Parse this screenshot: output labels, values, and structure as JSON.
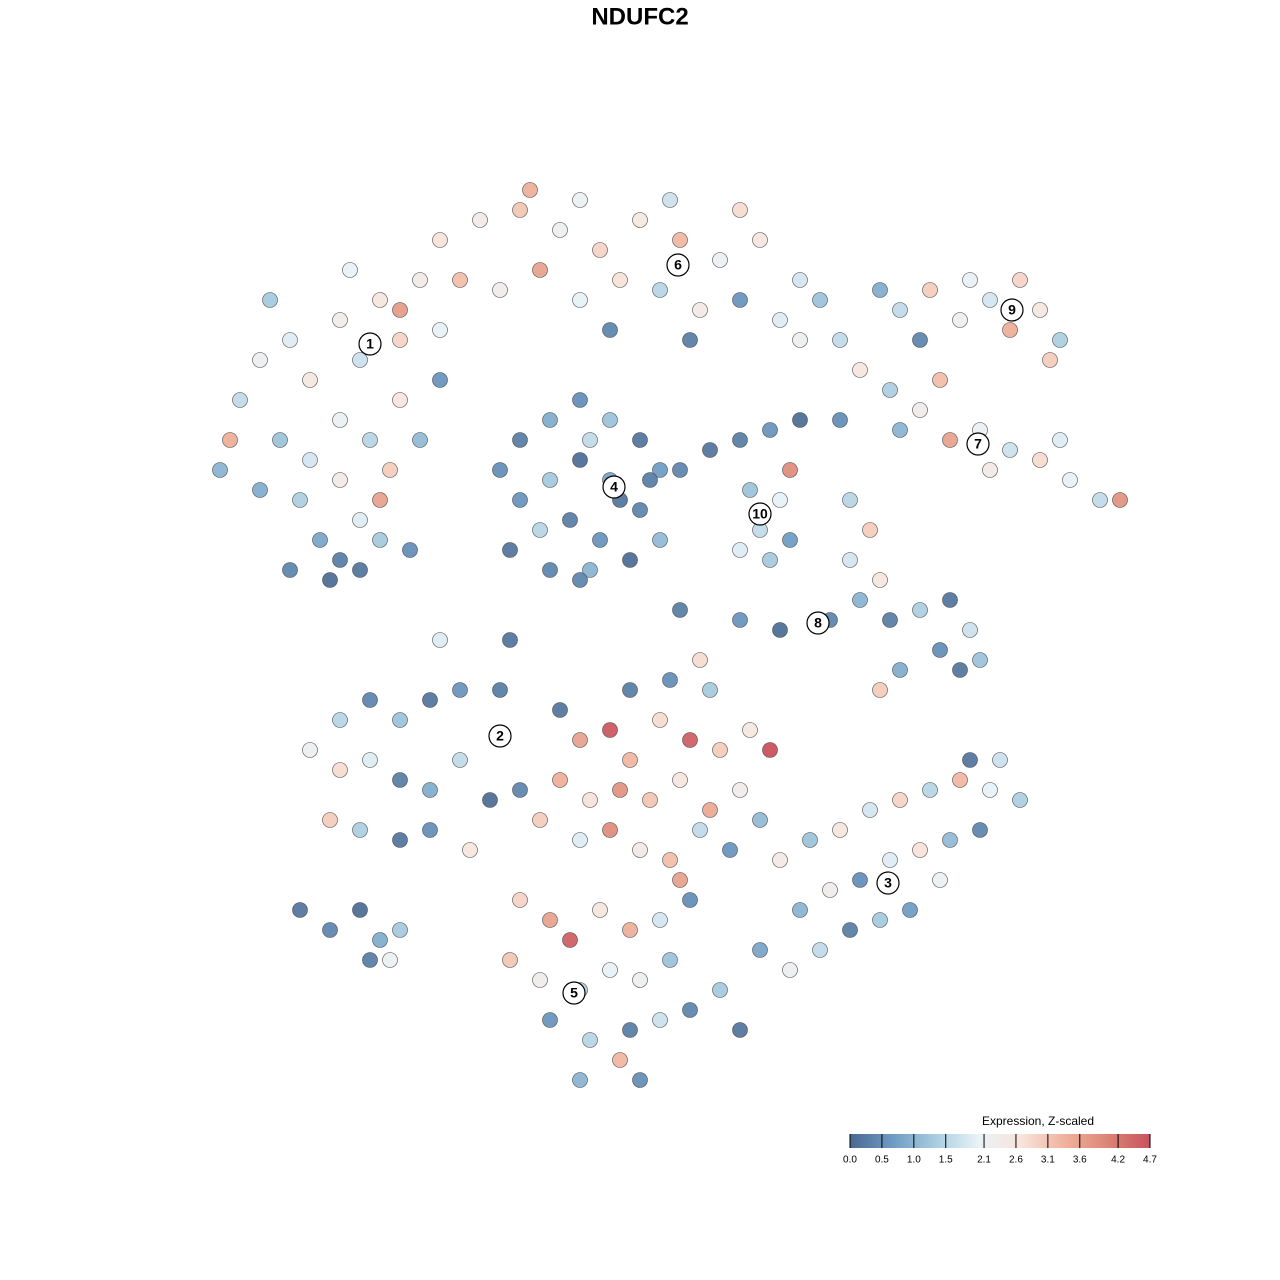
{
  "chart_data": {
    "type": "scatter",
    "title": "NDUFC2",
    "colorbar_title": "Expression, Z-scaled",
    "clim": [
      0,
      4.7
    ],
    "cticks": [
      {
        "value": 0,
        "label": "0.0"
      },
      0.5,
      {
        "value": 1,
        "label": "1.0"
      },
      1.5,
      2.1,
      2.6,
      3.1,
      3.6,
      4.2,
      4.7
    ],
    "colors": [
      "#4a6890",
      "#6f9cc4",
      "#a9cde0",
      "#e9f2f7",
      "#f8e4da",
      "#efb39d",
      "#dc8575",
      "#c9525f"
    ],
    "clusters": [
      {
        "label": "1",
        "x": -27,
        "y": 29.6
      },
      {
        "label": "2",
        "x": -14,
        "y": -9.6
      },
      {
        "label": "3",
        "x": 24.8,
        "y": -24.3
      },
      {
        "label": "4",
        "x": -2.6,
        "y": 15.3
      },
      {
        "label": "5",
        "x": -6.6,
        "y": -35.3
      },
      {
        "label": "6",
        "x": 3.8,
        "y": 37.5
      },
      {
        "label": "7",
        "x": 33.8,
        "y": 19.6
      },
      {
        "label": "8",
        "x": 17.8,
        "y": 1.7
      },
      {
        "label": "9",
        "x": 37.2,
        "y": 33
      },
      {
        "label": "10",
        "x": 12,
        "y": 12.6
      }
    ],
    "points": [
      [
        -40,
        24,
        1.6
      ],
      [
        -38,
        28,
        2.2
      ],
      [
        -35,
        30,
        1.9
      ],
      [
        -33,
        26,
        2.5
      ],
      [
        -30,
        32,
        2.3
      ],
      [
        -28,
        28,
        1.7
      ],
      [
        -26,
        34,
        2.6
      ],
      [
        -24,
        30,
        2.9
      ],
      [
        -22,
        36,
        2.4
      ],
      [
        -20,
        31,
        2.0
      ],
      [
        -36,
        20,
        1.2
      ],
      [
        -33,
        18,
        1.8
      ],
      [
        -30,
        22,
        2.1
      ],
      [
        -27,
        20,
        1.5
      ],
      [
        -24,
        24,
        2.6
      ],
      [
        -25,
        17,
        3.0
      ],
      [
        -30,
        16,
        2.4
      ],
      [
        -34,
        14,
        1.4
      ],
      [
        -28,
        12,
        1.9
      ],
      [
        -32,
        10,
        0.8
      ],
      [
        -26,
        10,
        1.3
      ],
      [
        -30,
        8,
        0.3
      ],
      [
        -28,
        7,
        0.2
      ],
      [
        -31,
        6,
        0.1
      ],
      [
        -35,
        7,
        0.4
      ],
      [
        -23,
        9,
        0.5
      ],
      [
        -42,
        17,
        1.0
      ],
      [
        -41,
        20,
        3.4
      ],
      [
        -37,
        34,
        1.3
      ],
      [
        -24,
        33,
        3.7
      ],
      [
        -29,
        37,
        2.0
      ],
      [
        -20,
        26,
        0.6
      ],
      [
        -22,
        20,
        1.1
      ],
      [
        -26,
        14,
        3.6
      ],
      [
        -38,
        15,
        0.9
      ],
      [
        -20,
        40,
        2.7
      ],
      [
        -16,
        42,
        2.4
      ],
      [
        -12,
        43,
        3.1
      ],
      [
        -8,
        41,
        2.2
      ],
      [
        -4,
        39,
        2.9
      ],
      [
        0,
        42,
        2.5
      ],
      [
        4,
        40,
        3.3
      ],
      [
        8,
        38,
        2.1
      ],
      [
        12,
        40,
        2.6
      ],
      [
        16,
        36,
        1.8
      ],
      [
        -18,
        36,
        3.2
      ],
      [
        -14,
        35,
        2.3
      ],
      [
        -10,
        37,
        3.6
      ],
      [
        -6,
        34,
        2.0
      ],
      [
        -2,
        36,
        2.7
      ],
      [
        2,
        35,
        1.5
      ],
      [
        6,
        33,
        2.4
      ],
      [
        10,
        34,
        0.6
      ],
      [
        14,
        32,
        1.9
      ],
      [
        18,
        34,
        1.2
      ],
      [
        -11,
        45,
        3.4
      ],
      [
        -6,
        44,
        2.1
      ],
      [
        3,
        44,
        1.7
      ],
      [
        10,
        43,
        2.8
      ],
      [
        -3,
        31,
        0.4
      ],
      [
        5,
        30,
        0.3
      ],
      [
        16,
        30,
        2.2
      ],
      [
        20,
        30,
        1.6
      ],
      [
        -12,
        20,
        0.3
      ],
      [
        -9,
        22,
        0.9
      ],
      [
        -6,
        24,
        0.5
      ],
      [
        -3,
        22,
        1.2
      ],
      [
        0,
        20,
        0.2
      ],
      [
        2,
        17,
        0.7
      ],
      [
        -12,
        14,
        0.6
      ],
      [
        -9,
        16,
        1.3
      ],
      [
        -6,
        18,
        0.1
      ],
      [
        -3,
        16,
        0.8
      ],
      [
        0,
        13,
        0.4
      ],
      [
        2,
        10,
        1.1
      ],
      [
        -13,
        9,
        0.2
      ],
      [
        -10,
        11,
        1.5
      ],
      [
        -7,
        12,
        0.3
      ],
      [
        -4,
        10,
        0.6
      ],
      [
        -1,
        8,
        0.1
      ],
      [
        -9,
        7,
        0.4
      ],
      [
        -5,
        7,
        1.0
      ],
      [
        -2,
        14,
        0.2
      ],
      [
        -14,
        17,
        0.5
      ],
      [
        -5,
        20,
        1.6
      ],
      [
        1,
        16,
        0.3
      ],
      [
        4,
        17,
        0.4
      ],
      [
        7,
        19,
        0.2
      ],
      [
        10,
        20,
        0.3
      ],
      [
        13,
        21,
        0.6
      ],
      [
        16,
        22,
        0.1
      ],
      [
        11,
        15,
        1.2
      ],
      [
        14,
        14,
        2.0
      ],
      [
        12,
        11,
        1.6
      ],
      [
        15,
        10,
        0.7
      ],
      [
        10,
        9,
        1.9
      ],
      [
        13,
        8,
        1.3
      ],
      [
        15,
        17,
        3.9
      ],
      [
        26,
        33,
        1.6
      ],
      [
        29,
        35,
        3.0
      ],
      [
        32,
        32,
        2.2
      ],
      [
        35,
        34,
        1.8
      ],
      [
        37,
        31,
        3.4
      ],
      [
        40,
        33,
        2.5
      ],
      [
        42,
        30,
        1.4
      ],
      [
        33,
        36,
        2.0
      ],
      [
        38,
        36,
        2.9
      ],
      [
        41,
        28,
        3.0
      ],
      [
        28,
        30,
        0.4
      ],
      [
        24,
        35,
        0.9
      ],
      [
        22,
        27,
        2.6
      ],
      [
        25,
        25,
        1.4
      ],
      [
        28,
        23,
        2.3
      ],
      [
        31,
        20,
        3.6
      ],
      [
        34,
        21,
        2.1
      ],
      [
        37,
        19,
        1.7
      ],
      [
        40,
        18,
        2.8
      ],
      [
        43,
        16,
        2.0
      ],
      [
        46,
        14,
        1.6
      ],
      [
        48,
        14,
        3.8
      ],
      [
        30,
        26,
        3.2
      ],
      [
        35,
        17,
        2.4
      ],
      [
        26,
        21,
        1.0
      ],
      [
        42,
        20,
        1.9
      ],
      [
        20,
        22,
        0.5
      ],
      [
        21,
        14,
        1.5
      ],
      [
        23,
        11,
        3.0
      ],
      [
        21,
        8,
        1.8
      ],
      [
        24,
        6,
        2.6
      ],
      [
        22,
        4,
        1.0
      ],
      [
        25,
        2,
        0.3
      ],
      [
        28,
        3,
        1.4
      ],
      [
        31,
        4,
        0.2
      ],
      [
        33,
        1,
        1.7
      ],
      [
        30,
        -1,
        0.5
      ],
      [
        26,
        -3,
        0.9
      ],
      [
        32,
        -3,
        0.2
      ],
      [
        34,
        -2,
        1.2
      ],
      [
        19,
        2,
        0.4
      ],
      [
        14,
        1,
        0.1
      ],
      [
        10,
        2,
        0.6
      ],
      [
        24,
        -5,
        3.0
      ],
      [
        -30,
        -8,
        1.5
      ],
      [
        -27,
        -6,
        0.4
      ],
      [
        -24,
        -8,
        1.2
      ],
      [
        -21,
        -6,
        0.2
      ],
      [
        -18,
        -5,
        0.6
      ],
      [
        -14,
        -5,
        0.3
      ],
      [
        -30,
        -13,
        2.8
      ],
      [
        -27,
        -12,
        1.9
      ],
      [
        -24,
        -14,
        0.3
      ],
      [
        -21,
        -15,
        0.9
      ],
      [
        -18,
        -12,
        1.6
      ],
      [
        -31,
        -18,
        3.0
      ],
      [
        -28,
        -19,
        1.4
      ],
      [
        -24,
        -20,
        0.2
      ],
      [
        -21,
        -19,
        0.5
      ],
      [
        -17,
        -21,
        2.6
      ],
      [
        -15,
        -16,
        0.1
      ],
      [
        -12,
        -15,
        0.4
      ],
      [
        -33,
        -11,
        2.2
      ],
      [
        -6,
        -10,
        3.6
      ],
      [
        -3,
        -9,
        4.6
      ],
      [
        -1,
        -12,
        3.3
      ],
      [
        2,
        -8,
        2.8
      ],
      [
        5,
        -10,
        4.5
      ],
      [
        8,
        -11,
        3.0
      ],
      [
        11,
        -9,
        2.5
      ],
      [
        13,
        -11,
        4.7
      ],
      [
        -8,
        -14,
        3.4
      ],
      [
        -5,
        -16,
        2.7
      ],
      [
        -2,
        -15,
        3.8
      ],
      [
        1,
        -16,
        3.1
      ],
      [
        4,
        -14,
        2.6
      ],
      [
        7,
        -17,
        3.5
      ],
      [
        10,
        -15,
        2.3
      ],
      [
        -6,
        -20,
        1.9
      ],
      [
        -3,
        -19,
        3.9
      ],
      [
        0,
        -21,
        2.4
      ],
      [
        3,
        -22,
        3.2
      ],
      [
        6,
        -19,
        1.6
      ],
      [
        9,
        -21,
        0.6
      ],
      [
        -1,
        -5,
        0.3
      ],
      [
        3,
        -4,
        0.5
      ],
      [
        7,
        -5,
        1.3
      ],
      [
        -8,
        -7,
        0.2
      ],
      [
        4,
        -24,
        3.6
      ],
      [
        -10,
        -18,
        3.0
      ],
      [
        12,
        -18,
        1.1
      ],
      [
        14,
        -22,
        2.4
      ],
      [
        17,
        -20,
        1.2
      ],
      [
        20,
        -19,
        2.6
      ],
      [
        23,
        -17,
        1.8
      ],
      [
        26,
        -16,
        2.9
      ],
      [
        29,
        -15,
        1.5
      ],
      [
        32,
        -14,
        3.3
      ],
      [
        35,
        -15,
        2.0
      ],
      [
        38,
        -16,
        1.4
      ],
      [
        16,
        -27,
        1.0
      ],
      [
        19,
        -25,
        2.3
      ],
      [
        22,
        -24,
        0.5
      ],
      [
        25,
        -22,
        1.9
      ],
      [
        28,
        -21,
        2.7
      ],
      [
        31,
        -20,
        1.1
      ],
      [
        34,
        -19,
        0.4
      ],
      [
        18,
        -31,
        1.6
      ],
      [
        21,
        -29,
        0.3
      ],
      [
        24,
        -28,
        1.3
      ],
      [
        27,
        -27,
        0.7
      ],
      [
        15,
        -33,
        2.2
      ],
      [
        30,
        -24,
        2.1
      ],
      [
        36,
        -12,
        1.7
      ],
      [
        33,
        -12,
        0.2
      ],
      [
        -12,
        -26,
        2.9
      ],
      [
        -9,
        -28,
        3.6
      ],
      [
        -7,
        -30,
        4.5
      ],
      [
        -4,
        -27,
        2.6
      ],
      [
        -1,
        -29,
        3.4
      ],
      [
        2,
        -28,
        1.8
      ],
      [
        5,
        -26,
        0.5
      ],
      [
        -13,
        -32,
        3.1
      ],
      [
        -10,
        -34,
        2.3
      ],
      [
        -6,
        -35,
        1.4
      ],
      [
        -3,
        -33,
        2.0
      ],
      [
        0,
        -34,
        2.2
      ],
      [
        3,
        -32,
        1.2
      ],
      [
        -9,
        -38,
        0.6
      ],
      [
        -5,
        -40,
        1.5
      ],
      [
        -1,
        -39,
        0.3
      ],
      [
        2,
        -38,
        1.7
      ],
      [
        5,
        -37,
        0.4
      ],
      [
        8,
        -35,
        1.3
      ],
      [
        10,
        -39,
        0.2
      ],
      [
        -6,
        -44,
        1.0
      ],
      [
        0,
        -44,
        0.5
      ],
      [
        -2,
        -42,
        3.3
      ],
      [
        12,
        -31,
        0.8
      ],
      [
        -34,
        -27,
        0.2
      ],
      [
        -31,
        -29,
        0.4
      ],
      [
        -28,
        -27,
        0.1
      ],
      [
        -26,
        -30,
        0.9
      ],
      [
        -24,
        -29,
        1.3
      ],
      [
        -27,
        -32,
        0.3
      ],
      [
        -25,
        -32,
        2.1
      ],
      [
        -20,
        0,
        1.9
      ],
      [
        -13,
        0,
        0.2
      ],
      [
        -6,
        6,
        0.4
      ],
      [
        4,
        3,
        0.3
      ],
      [
        6,
        -2,
        2.8
      ]
    ]
  }
}
